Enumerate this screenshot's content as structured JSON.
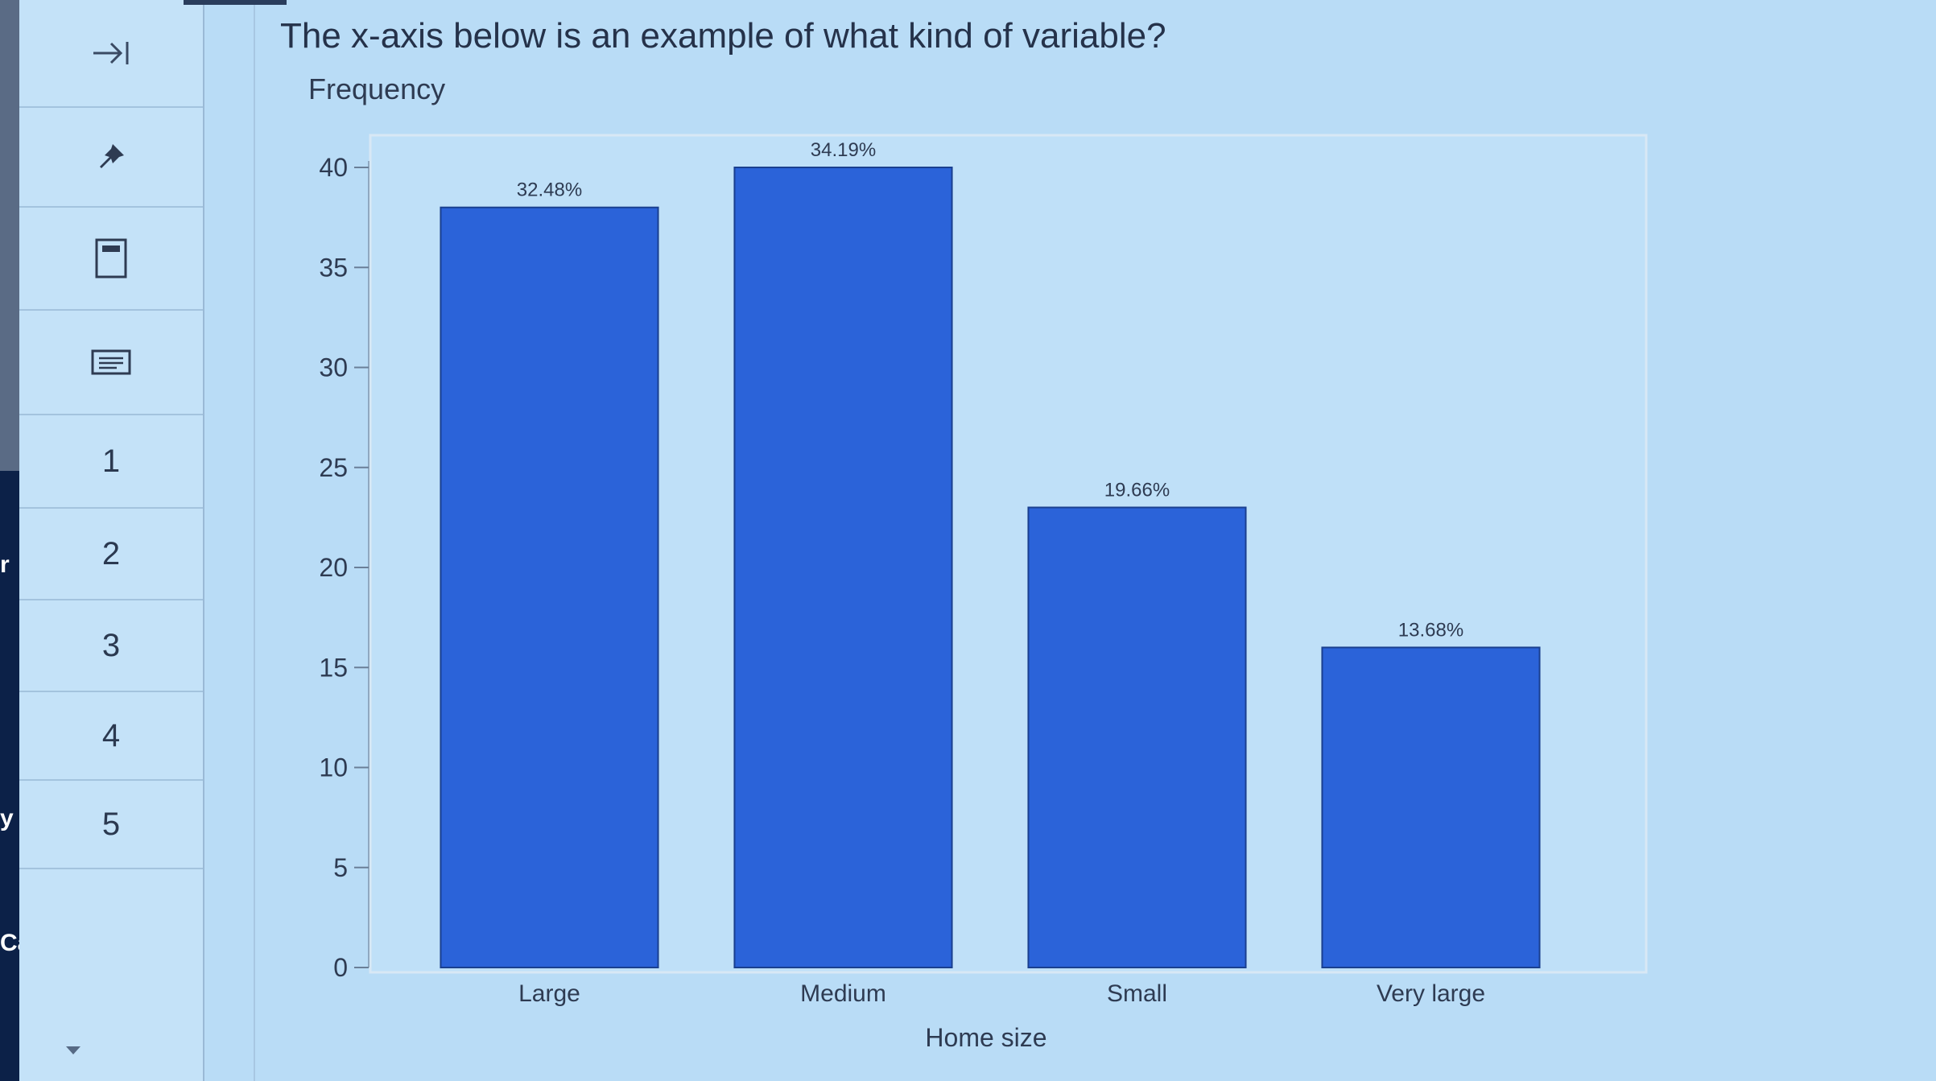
{
  "left_panel": {
    "fragments": [
      "r",
      "y",
      "Car"
    ]
  },
  "sidebar": {
    "collapse_icon": "collapse-right-icon",
    "pin_icon": "pin-icon",
    "calculator_icon": "calculator-icon",
    "notes_icon": "notes-icon",
    "questions": [
      "1",
      "2",
      "3",
      "4",
      "5"
    ]
  },
  "question": {
    "text": "The x-axis below is an example of what kind of variable?"
  },
  "chart_data": {
    "type": "bar",
    "ylabel": "Frequency",
    "xlabel": "Home size",
    "categories": [
      "Large",
      "Medium",
      "Small",
      "Very large"
    ],
    "values": [
      38,
      40,
      23,
      16
    ],
    "data_labels": [
      "32.48%",
      "34.19%",
      "19.66%",
      "13.68%"
    ],
    "ylim": [
      0,
      40
    ],
    "yticks": [
      "0",
      "5",
      "10",
      "15",
      "20",
      "25",
      "30",
      "35",
      "40"
    ],
    "bar_color": "#2b63d9",
    "grid": false,
    "legend": "none"
  }
}
